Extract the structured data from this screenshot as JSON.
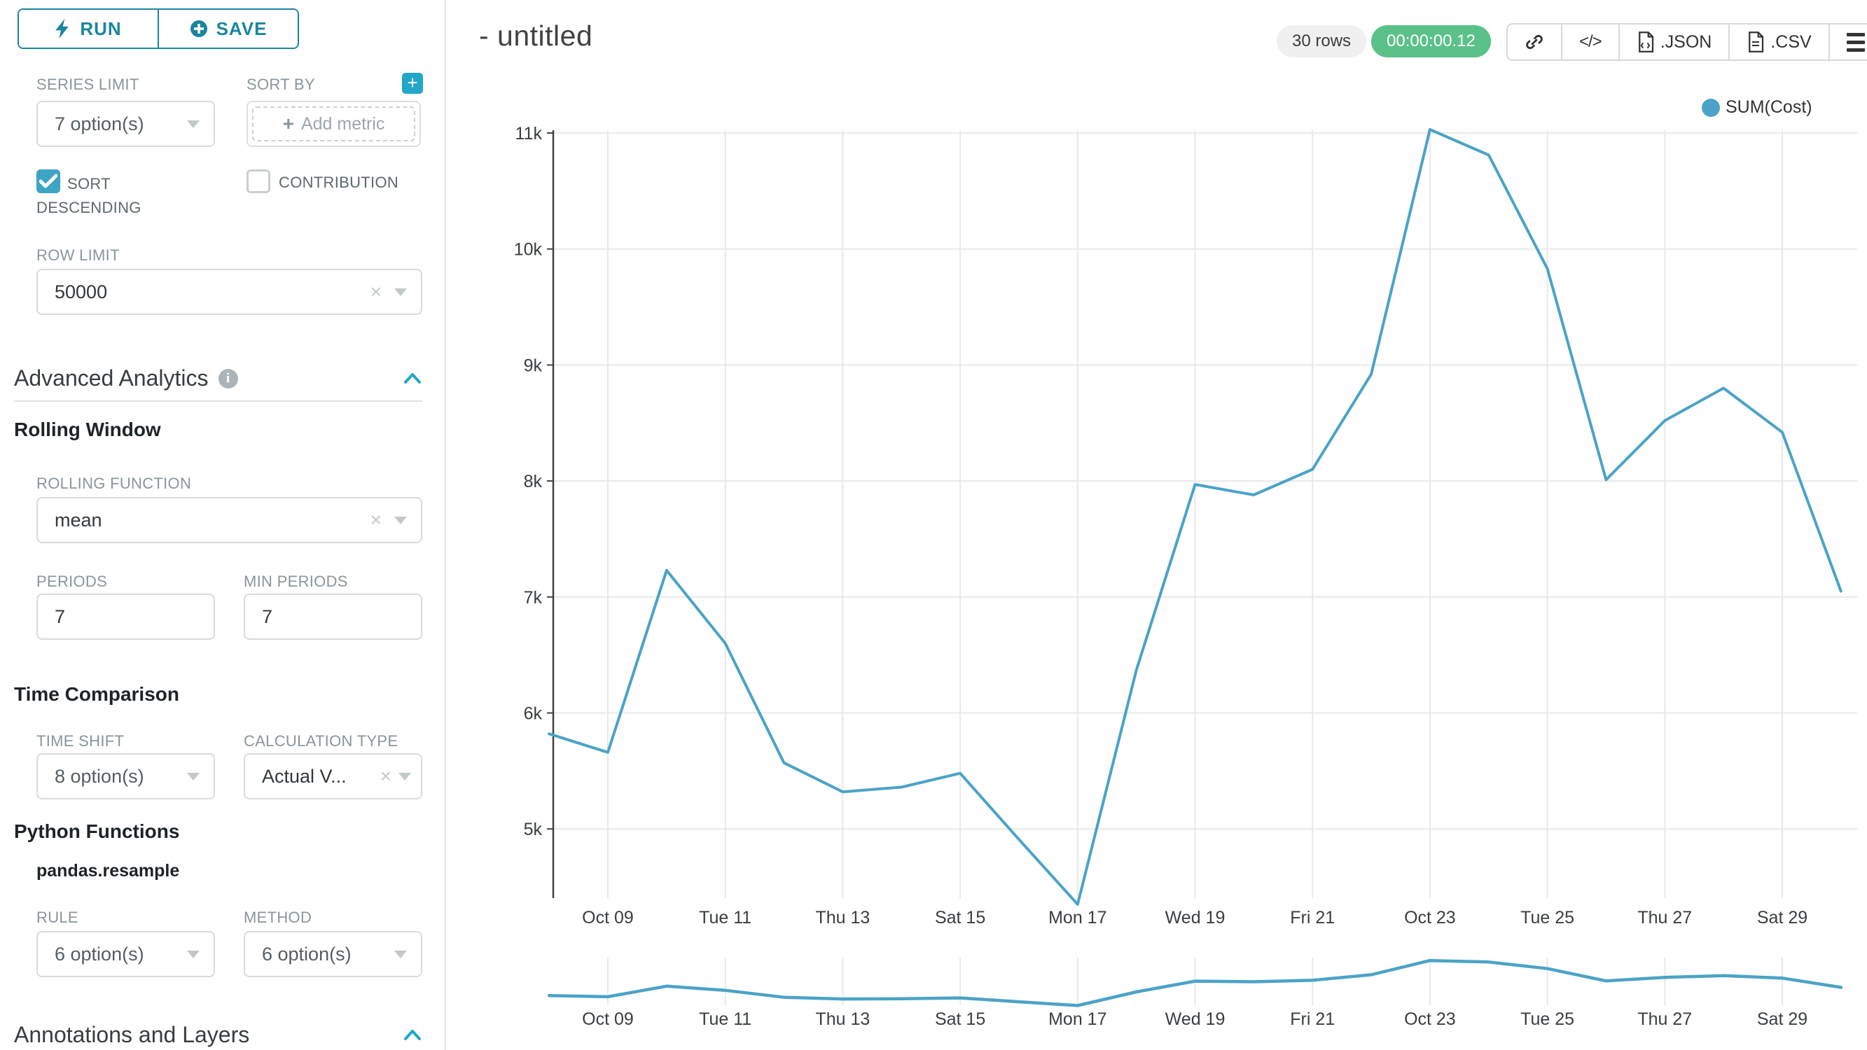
{
  "toolbar": {
    "run_label": "RUN",
    "save_label": "SAVE"
  },
  "controls": {
    "series_limit": {
      "label": "SERIES LIMIT",
      "value": "7 option(s)"
    },
    "sort_by": {
      "label": "SORT BY",
      "placeholder": "Add metric"
    },
    "sort_descending": {
      "label": "SORT DESCENDING",
      "checked": true
    },
    "contribution": {
      "label": "CONTRIBUTION",
      "checked": false
    },
    "row_limit": {
      "label": "ROW LIMIT",
      "value": "50000"
    },
    "advanced_analytics": {
      "title": "Advanced Analytics"
    },
    "rolling_window": {
      "title": "Rolling Window",
      "rolling_function": {
        "label": "ROLLING FUNCTION",
        "value": "mean"
      },
      "periods": {
        "label": "PERIODS",
        "value": "7"
      },
      "min_periods": {
        "label": "MIN PERIODS",
        "value": "7"
      }
    },
    "time_comparison": {
      "title": "Time Comparison",
      "time_shift": {
        "label": "TIME SHIFT",
        "value": "8 option(s)"
      },
      "calculation_type": {
        "label": "CALCULATION TYPE",
        "value": "Actual V..."
      }
    },
    "python_functions": {
      "title": "Python Functions",
      "subtitle": "pandas.resample",
      "rule": {
        "label": "RULE",
        "value": "6 option(s)"
      },
      "method": {
        "label": "METHOD",
        "value": "6 option(s)"
      }
    },
    "annotations": {
      "title": "Annotations and Layers"
    }
  },
  "header": {
    "title": "- untitled",
    "rows_badge": "30 rows",
    "timer_badge": "00:00:00.12",
    "json_label": ".JSON",
    "csv_label": ".CSV"
  },
  "colors": {
    "accent": "#20A7C9",
    "accent_dark": "#1A85A0",
    "success": "#5AC189",
    "series": "#4BA3C7",
    "grid": "#E9E9E9",
    "axis": "#424242"
  },
  "chart_data": {
    "type": "line",
    "title": "",
    "legend": [
      {
        "name": "SUM(Cost)",
        "color": "#4BA3C7"
      }
    ],
    "legend_position": "top-right",
    "grid": true,
    "x": [
      "Oct 08",
      "Oct 09",
      "Oct 10",
      "Oct 11",
      "Oct 12",
      "Oct 13",
      "Oct 14",
      "Oct 15",
      "Oct 16",
      "Oct 17",
      "Oct 18",
      "Oct 19",
      "Oct 20",
      "Oct 21",
      "Oct 22",
      "Oct 23",
      "Oct 24",
      "Oct 25",
      "Oct 26",
      "Oct 27",
      "Oct 28",
      "Oct 29",
      "Oct 30"
    ],
    "series": [
      {
        "name": "SUM(Cost)",
        "values": [
          5820,
          5660,
          7230,
          6600,
          5570,
          5320,
          5360,
          5480,
          4910,
          4350,
          6370,
          7970,
          7880,
          8100,
          8920,
          11030,
          10810,
          9830,
          8010,
          8520,
          8800,
          8420,
          7050
        ]
      }
    ],
    "x_tick_labels": [
      "Oct 09",
      "Tue 11",
      "Thu 13",
      "Sat 15",
      "Mon 17",
      "Wed 19",
      "Fri 21",
      "Oct 23",
      "Tue 25",
      "Thu 27",
      "Sat 29"
    ],
    "x_tick_indices": [
      1,
      3,
      5,
      7,
      9,
      11,
      13,
      15,
      17,
      19,
      21
    ],
    "y_tick_labels": [
      "5k",
      "6k",
      "7k",
      "8k",
      "9k",
      "10k",
      "11k"
    ],
    "y_tick_values": [
      5000,
      6000,
      7000,
      8000,
      9000,
      10000,
      11000
    ],
    "ylim": [
      4400,
      11050
    ],
    "has_mini_preview": true
  }
}
